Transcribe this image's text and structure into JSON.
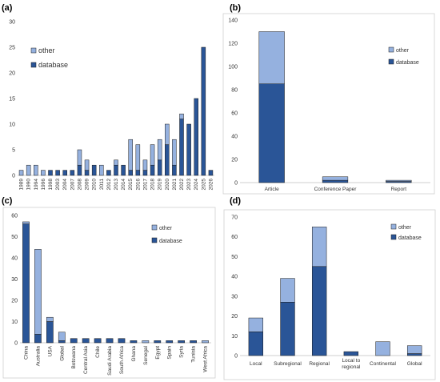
{
  "colors": {
    "database": "#2a5597",
    "other": "#95b1df",
    "outline": "#1a1a1a"
  },
  "chart_data": [
    {
      "panel": "(a)",
      "type": "bar",
      "stacked": true,
      "categories": [
        "1989",
        "1990",
        "1994",
        "1996",
        "1998",
        "2003",
        "2004",
        "2007",
        "2008",
        "2009",
        "2010",
        "2011",
        "2012",
        "2013",
        "2014",
        "2015",
        "2016",
        "2017",
        "2018",
        "2019",
        "2020",
        "2021",
        "2022",
        "2023",
        "2024",
        "2025",
        "2026"
      ],
      "series": [
        {
          "name": "database",
          "values": [
            0,
            0,
            0,
            0,
            1,
            1,
            1,
            1,
            2,
            1,
            2,
            0,
            1,
            2,
            2,
            1,
            1,
            1,
            2,
            3,
            6,
            2,
            11,
            10,
            15,
            25,
            1
          ]
        },
        {
          "name": "other",
          "values": [
            1,
            2,
            2,
            1,
            0,
            0,
            0,
            0,
            3,
            2,
            0,
            2,
            0,
            1,
            0,
            6,
            5,
            2,
            4,
            4,
            4,
            5,
            1,
            0,
            0,
            0,
            0
          ]
        }
      ],
      "ylim": [
        0,
        30
      ],
      "yticks": [
        0,
        5,
        10,
        15,
        20,
        25,
        30
      ],
      "legend_position": "top-left",
      "legend_order": [
        "other",
        "database"
      ]
    },
    {
      "panel": "(b)",
      "type": "bar",
      "stacked": true,
      "categories": [
        "Article",
        "Conference Paper",
        "Report"
      ],
      "series": [
        {
          "name": "database",
          "values": [
            85,
            2,
            1
          ]
        },
        {
          "name": "other",
          "values": [
            45,
            3,
            1
          ]
        }
      ],
      "ylim": [
        0,
        140
      ],
      "yticks": [
        0,
        20,
        40,
        60,
        80,
        100,
        120,
        140
      ],
      "legend_position": "right",
      "legend_order": [
        "other",
        "database"
      ]
    },
    {
      "panel": "(c)",
      "type": "bar",
      "stacked": true,
      "categories": [
        "China",
        "Australia",
        "USA",
        "Global",
        "Botswana",
        "Central Asia",
        "Chile",
        "Saudi Arabia",
        "South Africa",
        "Ghana",
        "Senegal",
        "Egypt",
        "Spain",
        "Syria",
        "Tunisia",
        "West Africa"
      ],
      "series": [
        {
          "name": "database",
          "values": [
            56,
            4,
            10,
            1,
            2,
            2,
            2,
            2,
            2,
            1,
            0,
            1,
            1,
            1,
            1,
            0
          ]
        },
        {
          "name": "other",
          "values": [
            1,
            40,
            2,
            4,
            0,
            0,
            0,
            0,
            0,
            0,
            1,
            0,
            0,
            0,
            0,
            1
          ]
        }
      ],
      "ylim": [
        0,
        60
      ],
      "yticks": [
        0,
        10,
        20,
        30,
        40,
        50,
        60
      ],
      "legend_position": "top-right",
      "legend_order": [
        "other",
        "database"
      ]
    },
    {
      "panel": "(d)",
      "type": "bar",
      "stacked": true,
      "categories": [
        "Local",
        "Subregional",
        "Regional",
        "Local to regional",
        "Continental",
        "Global"
      ],
      "category_lines": [
        [
          "Local"
        ],
        [
          "Subregional"
        ],
        [
          "Regional"
        ],
        [
          "Local to",
          "regional"
        ],
        [
          "Continental"
        ],
        [
          "Global"
        ]
      ],
      "series": [
        {
          "name": "database",
          "values": [
            12,
            27,
            45,
            2,
            0,
            1
          ]
        },
        {
          "name": "other",
          "values": [
            7,
            12,
            20,
            0,
            7,
            4
          ]
        }
      ],
      "ylim": [
        0,
        70
      ],
      "yticks": [
        0,
        10,
        20,
        30,
        40,
        50,
        60,
        70
      ],
      "legend_position": "top-right",
      "legend_order": [
        "other",
        "database"
      ]
    }
  ]
}
